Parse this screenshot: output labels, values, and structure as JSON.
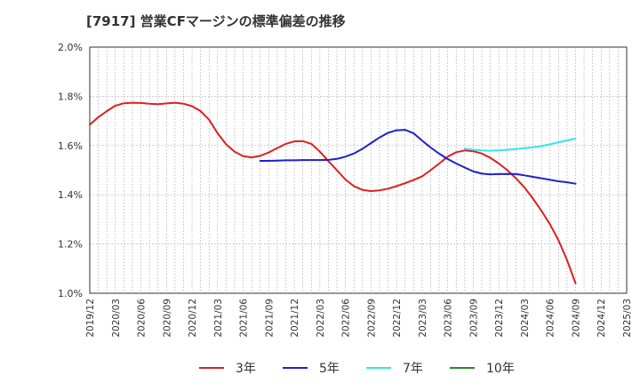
{
  "chart_data": {
    "type": "line",
    "title": "[7917]  営業CFマージンの標準偏差の推移",
    "xlabel": "",
    "ylabel": "",
    "x_ticks": [
      "2019/12",
      "2020/03",
      "2020/06",
      "2020/09",
      "2020/12",
      "2021/03",
      "2021/06",
      "2021/09",
      "2021/12",
      "2022/03",
      "2022/06",
      "2022/09",
      "2022/12",
      "2023/03",
      "2023/06",
      "2023/09",
      "2023/12",
      "2024/03",
      "2024/06",
      "2024/09",
      "2024/12",
      "2025/03"
    ],
    "y_ticks": [
      "1.0%",
      "1.2%",
      "1.4%",
      "1.6%",
      "1.8%",
      "2.0%"
    ],
    "ylim": [
      1.0,
      2.0
    ],
    "grid": true,
    "legend_position": "bottom",
    "series": [
      {
        "name": "3年",
        "color": "#dd1f1f",
        "x": [
          "2019/12",
          "2020/01",
          "2020/02",
          "2020/03",
          "2020/04",
          "2020/05",
          "2020/06",
          "2020/07",
          "2020/08",
          "2020/09",
          "2020/10",
          "2020/11",
          "2020/12",
          "2021/01",
          "2021/02",
          "2021/03",
          "2021/04",
          "2021/05",
          "2021/06",
          "2021/07",
          "2021/08",
          "2021/09",
          "2021/10",
          "2021/11",
          "2021/12",
          "2022/01",
          "2022/02",
          "2022/03",
          "2022/04",
          "2022/05",
          "2022/06",
          "2022/07",
          "2022/08",
          "2022/09",
          "2022/10",
          "2022/11",
          "2022/12",
          "2023/01",
          "2023/02",
          "2023/03",
          "2023/04",
          "2023/05",
          "2023/06",
          "2023/07",
          "2023/08",
          "2023/09",
          "2023/10",
          "2023/11",
          "2023/12",
          "2024/01",
          "2024/02",
          "2024/03",
          "2024/04",
          "2024/05",
          "2024/06",
          "2024/07",
          "2024/08",
          "2024/09"
        ],
        "values": [
          1.685,
          1.715,
          1.74,
          1.762,
          1.772,
          1.774,
          1.773,
          1.77,
          1.768,
          1.771,
          1.774,
          1.77,
          1.76,
          1.74,
          1.705,
          1.65,
          1.605,
          1.575,
          1.557,
          1.552,
          1.558,
          1.572,
          1.59,
          1.607,
          1.617,
          1.618,
          1.607,
          1.575,
          1.537,
          1.5,
          1.462,
          1.435,
          1.42,
          1.415,
          1.418,
          1.425,
          1.435,
          1.447,
          1.46,
          1.475,
          1.5,
          1.527,
          1.555,
          1.573,
          1.58,
          1.577,
          1.568,
          1.55,
          1.527,
          1.5,
          1.467,
          1.43,
          1.385,
          1.335,
          1.28,
          1.215,
          1.135,
          1.04
        ]
      },
      {
        "name": "5年",
        "color": "#1f1fd1",
        "x": [
          "2021/08",
          "2021/09",
          "2021/10",
          "2021/11",
          "2021/12",
          "2022/01",
          "2022/02",
          "2022/03",
          "2022/04",
          "2022/05",
          "2022/06",
          "2022/07",
          "2022/08",
          "2022/09",
          "2022/10",
          "2022/11",
          "2022/12",
          "2023/01",
          "2023/02",
          "2023/03",
          "2023/04",
          "2023/05",
          "2023/06",
          "2023/07",
          "2023/08",
          "2023/09",
          "2023/10",
          "2023/11",
          "2023/12",
          "2024/01",
          "2024/02",
          "2024/03",
          "2024/04",
          "2024/05",
          "2024/06",
          "2024/07",
          "2024/08",
          "2024/09"
        ],
        "values": [
          1.538,
          1.538,
          1.539,
          1.54,
          1.54,
          1.541,
          1.541,
          1.541,
          1.542,
          1.546,
          1.555,
          1.568,
          1.587,
          1.61,
          1.633,
          1.652,
          1.662,
          1.664,
          1.65,
          1.62,
          1.592,
          1.567,
          1.545,
          1.527,
          1.511,
          1.495,
          1.486,
          1.483,
          1.484,
          1.485,
          1.484,
          1.479,
          1.473,
          1.467,
          1.461,
          1.455,
          1.451,
          1.445
        ]
      },
      {
        "name": "7年",
        "color": "#33e6e6",
        "x": [
          "2023/08",
          "2023/09",
          "2023/10",
          "2023/11",
          "2023/12",
          "2024/01",
          "2024/02",
          "2024/03",
          "2024/04",
          "2024/05",
          "2024/06",
          "2024/07",
          "2024/08",
          "2024/09"
        ],
        "values": [
          1.587,
          1.583,
          1.58,
          1.579,
          1.581,
          1.583,
          1.586,
          1.589,
          1.593,
          1.598,
          1.605,
          1.613,
          1.621,
          1.628
        ]
      },
      {
        "name": "10年",
        "color": "#1f8f1f",
        "x": [],
        "values": []
      }
    ]
  }
}
